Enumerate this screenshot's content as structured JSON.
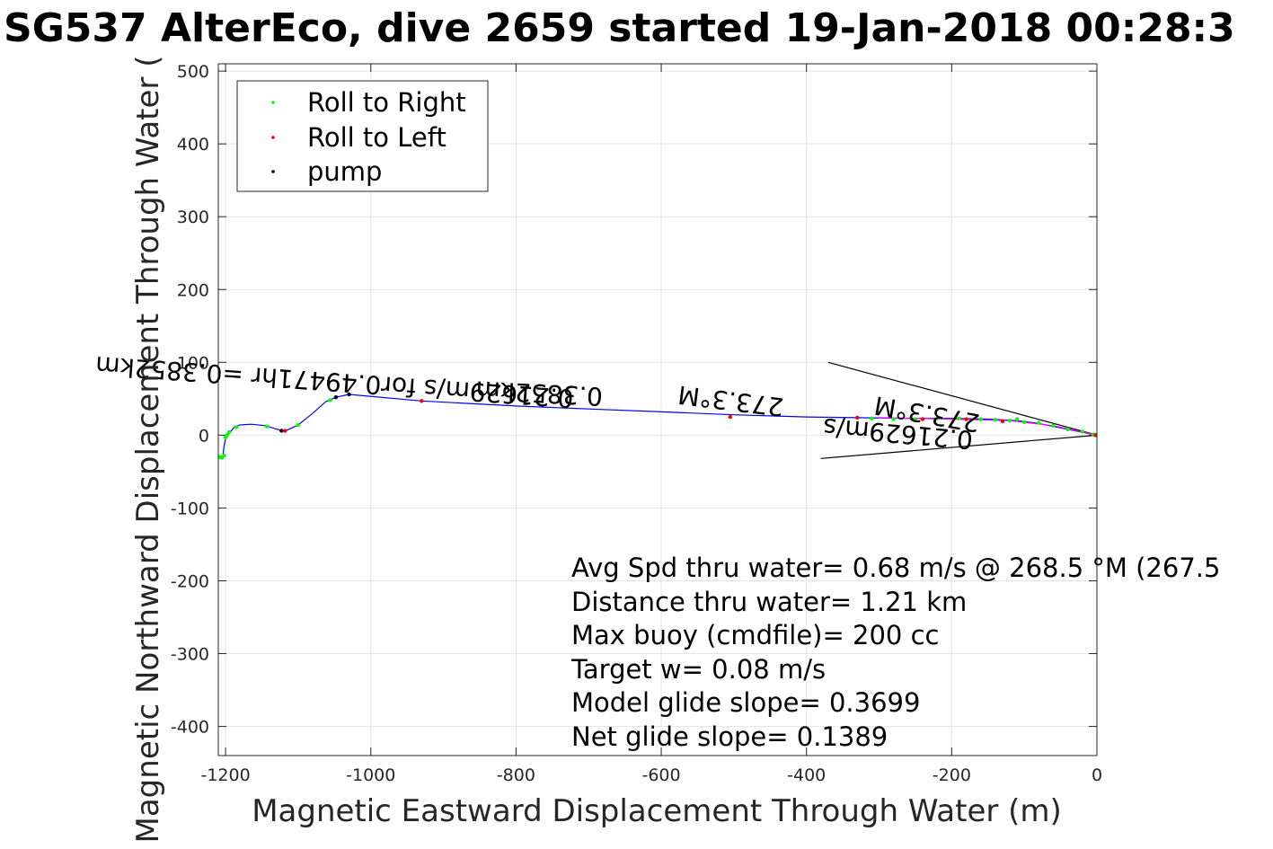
{
  "chart_data": {
    "type": "scatter",
    "title": "SG537 AlterEco, dive 2659 started 19-Jan-2018 00:28:3",
    "xlabel": "Magnetic Eastward Displacement Through Water (m)",
    "ylabel": "Magnetic Northward Displacement Through Water (",
    "xlim": [
      -1210,
      0
    ],
    "ylim": [
      -440,
      510
    ],
    "xticks": [
      -1200,
      -1000,
      -800,
      -600,
      -400,
      -200,
      0
    ],
    "yticks": [
      -400,
      -300,
      -200,
      -100,
      0,
      100,
      200,
      300,
      400,
      500
    ],
    "xtick_labels": [
      "-1200",
      "-1000",
      "-800",
      "-600",
      "-400",
      "-200",
      "0"
    ],
    "ytick_labels": [
      "-400",
      "-300",
      "-200",
      "-100",
      "0",
      "100",
      "200",
      "300",
      "400",
      "500"
    ],
    "grid": true,
    "legend_position": "top-left",
    "legend": [
      {
        "label": "Roll to Right",
        "color": "#00ff00"
      },
      {
        "label": "Roll to Left",
        "color": "#ff0000"
      },
      {
        "label": "pump",
        "color": "#000000"
      }
    ],
    "track": {
      "name": "dive track",
      "color": "#0000ff",
      "points": [
        [
          0,
          0
        ],
        [
          -20,
          4
        ],
        [
          -50,
          10
        ],
        [
          -80,
          16
        ],
        [
          -110,
          20
        ],
        [
          -150,
          22
        ],
        [
          -200,
          23
        ],
        [
          -260,
          23
        ],
        [
          -330,
          24
        ],
        [
          -400,
          25
        ],
        [
          -500,
          28
        ],
        [
          -600,
          32
        ],
        [
          -700,
          36
        ],
        [
          -800,
          40
        ],
        [
          -930,
          47
        ],
        [
          -1030,
          56
        ],
        [
          -1048,
          52
        ],
        [
          -1062,
          46
        ],
        [
          -1080,
          30
        ],
        [
          -1100,
          14
        ],
        [
          -1115,
          7
        ],
        [
          -1122,
          6
        ],
        [
          -1135,
          10
        ],
        [
          -1145,
          13
        ],
        [
          -1165,
          15
        ],
        [
          -1180,
          14
        ],
        [
          -1188,
          11
        ],
        [
          -1193,
          5
        ],
        [
          -1197,
          0
        ],
        [
          -1200,
          -4
        ],
        [
          -1202,
          -15
        ],
        [
          -1204,
          -30
        ]
      ]
    },
    "roll_right_points": [
      [
        -5,
        1
      ],
      [
        -20,
        5
      ],
      [
        -40,
        8
      ],
      [
        -60,
        13
      ],
      [
        -80,
        17
      ],
      [
        -100,
        18
      ],
      [
        -110,
        22
      ],
      [
        -120,
        20
      ],
      [
        -140,
        21
      ],
      [
        -160,
        22
      ],
      [
        -190,
        23
      ],
      [
        -220,
        23
      ],
      [
        -250,
        22
      ],
      [
        -280,
        22
      ],
      [
        -310,
        23
      ],
      [
        -1056,
        48
      ],
      [
        -1100,
        14
      ],
      [
        -1143,
        12
      ],
      [
        -1185,
        11
      ],
      [
        -1195,
        4
      ],
      [
        -1198,
        0
      ],
      [
        -1200,
        -3
      ],
      [
        -1202,
        -28
      ],
      [
        -1205,
        -31
      ],
      [
        -1208,
        -30
      ]
    ],
    "roll_left_points": [
      [
        -2,
        0
      ],
      [
        -130,
        19
      ],
      [
        -180,
        22
      ],
      [
        -240,
        22
      ],
      [
        -330,
        24
      ],
      [
        -505,
        25
      ],
      [
        -930,
        47
      ],
      [
        -1118,
        6
      ]
    ],
    "pump_points": [
      [
        -1030,
        56
      ],
      [
        -1048,
        52
      ],
      [
        -1123,
        6
      ]
    ],
    "magenta_track": {
      "color": "#ff00ff",
      "points": [
        [
          0,
          0
        ],
        [
          -60,
          13
        ],
        [
          -120,
          20
        ],
        [
          -200,
          22
        ],
        [
          -300,
          24
        ]
      ]
    },
    "current_vector_lines": [
      [
        [
          0,
          0
        ],
        [
          -370,
          100
        ]
      ],
      [
        [
          0,
          0
        ],
        [
          -380,
          -32
        ]
      ]
    ],
    "rotated_labels": [
      {
        "text": "0.3852km",
        "x": -680,
        "y": 65,
        "angle": 183
      },
      {
        "text": "273.3°M",
        "x": -430,
        "y": 50,
        "angle": 187
      },
      {
        "text": "0.21629m/s for0.49471hr =0.3852km",
        "x": -720,
        "y": 62,
        "angle": 184
      },
      {
        "text": "273.3°M",
        "x": -160,
        "y": 28,
        "angle": 190
      },
      {
        "text": "0.21629m/s",
        "x": -170,
        "y": 5,
        "angle": 185
      }
    ],
    "annotations": [
      "Avg Spd thru water=  0.68 m/s @ 268.5 °M (267.5",
      "Distance thru water=  1.21 km",
      "Max buoy (cmdfile)= 200 cc",
      "Target w= 0.08 m/s",
      "Model glide slope= 0.3699",
      "Net glide slope= 0.1389"
    ]
  }
}
